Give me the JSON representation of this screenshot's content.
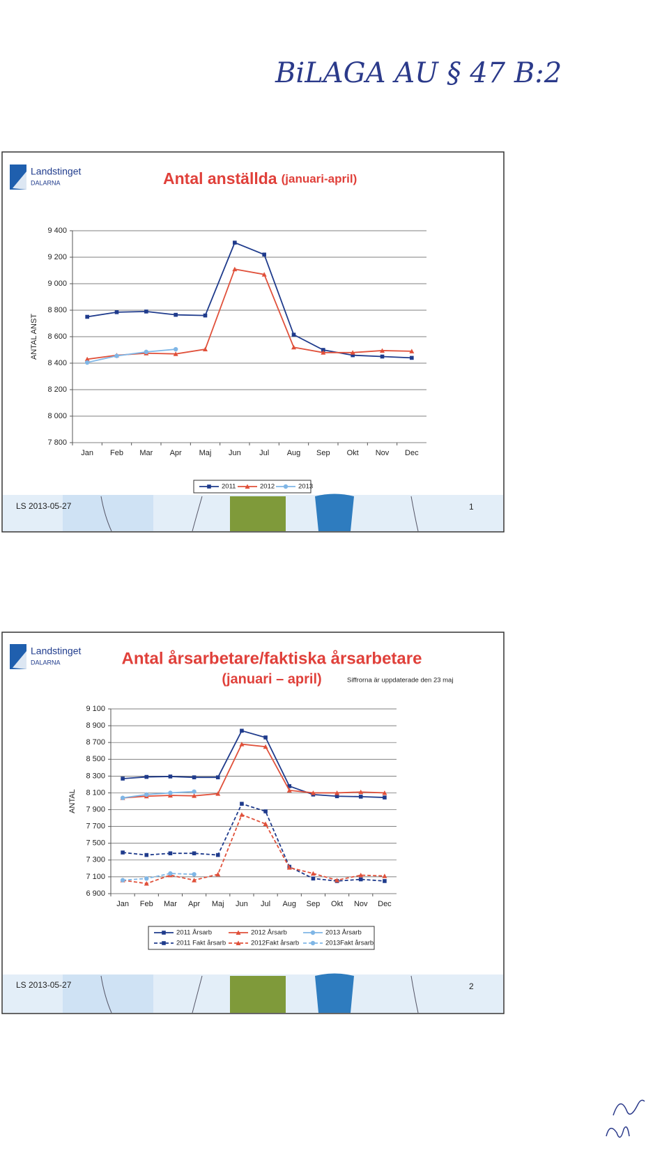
{
  "annotation": "BiLAGA AU § 47 B:2",
  "slides": [
    {
      "brand": "Landstinget",
      "region": "DALARNA",
      "title": "Antal anställda",
      "subtitle": "(januari-april)",
      "footer": "LS 2013-05-27",
      "page": "1"
    },
    {
      "brand": "Landstinget",
      "region": "DALARNA",
      "title": "Antal årsarbetare/faktiska årsarbetare",
      "subtitle": "(januari – april)",
      "note": "Siffrorna är uppdaterade den 23 maj",
      "footer": "LS 2013-05-27",
      "page": "2"
    }
  ],
  "chart_data": [
    {
      "type": "line",
      "y_label": "ANTAL ANST",
      "grid": true,
      "categories": [
        "Jan",
        "Feb",
        "Mar",
        "Apr",
        "Maj",
        "Jun",
        "Jul",
        "Aug",
        "Sep",
        "Okt",
        "Nov",
        "Dec"
      ],
      "ylim": [
        7800,
        9400
      ],
      "yticks": [
        {
          "value": 7800,
          "label": "7 800"
        },
        {
          "value": 8000,
          "label": "8 000"
        },
        {
          "value": 8200,
          "label": "8 200"
        },
        {
          "value": 8400,
          "label": "8 400"
        },
        {
          "value": 8600,
          "label": "8 600"
        },
        {
          "value": 8800,
          "label": "8 800"
        },
        {
          "value": 9000,
          "label": "9 000"
        },
        {
          "value": 9200,
          "label": "9 200"
        },
        {
          "value": 9400,
          "label": "9 400"
        }
      ],
      "series": [
        {
          "name": "2011",
          "color": "#1f3b8c",
          "marker": "square",
          "dashed": false,
          "values": [
            8750,
            8785,
            8790,
            8765,
            8760,
            9310,
            9220,
            8615,
            8500,
            8460,
            8450,
            8440
          ]
        },
        {
          "name": "2012",
          "color": "#e0503a",
          "marker": "triangle",
          "dashed": false,
          "values": [
            8430,
            8460,
            8475,
            8470,
            8505,
            9110,
            9070,
            8520,
            8480,
            8480,
            8495,
            8490
          ]
        },
        {
          "name": "2013",
          "color": "#7fb6e6",
          "marker": "circle",
          "dashed": false,
          "values": [
            8405,
            8455,
            8485,
            8505,
            null,
            null,
            null,
            null,
            null,
            null,
            null,
            null
          ]
        }
      ]
    },
    {
      "type": "line",
      "y_label": "ANTAL",
      "grid": true,
      "categories": [
        "Jan",
        "Feb",
        "Mar",
        "Apr",
        "Maj",
        "Jun",
        "Jul",
        "Aug",
        "Sep",
        "Okt",
        "Nov",
        "Dec"
      ],
      "ylim": [
        6900,
        9100
      ],
      "yticks": [
        {
          "value": 6900,
          "label": "6 900"
        },
        {
          "value": 7100,
          "label": "7 100"
        },
        {
          "value": 7300,
          "label": "7 300"
        },
        {
          "value": 7500,
          "label": "7 500"
        },
        {
          "value": 7700,
          "label": "7 700"
        },
        {
          "value": 7900,
          "label": "7 900"
        },
        {
          "value": 8100,
          "label": "8 100"
        },
        {
          "value": 8300,
          "label": "8 300"
        },
        {
          "value": 8500,
          "label": "8 500"
        },
        {
          "value": 8700,
          "label": "8 700"
        },
        {
          "value": 8900,
          "label": "8 900"
        },
        {
          "value": 9100,
          "label": "9 100"
        }
      ],
      "series": [
        {
          "name": "2011 Årsarb",
          "color": "#1f3b8c",
          "marker": "square",
          "dashed": false,
          "values": [
            8270,
            8290,
            8295,
            8285,
            8285,
            8840,
            8760,
            8180,
            8080,
            8060,
            8055,
            8045
          ]
        },
        {
          "name": "2012 Årsarb",
          "color": "#e0503a",
          "marker": "triangle",
          "dashed": false,
          "values": [
            8040,
            8060,
            8070,
            8065,
            8090,
            8680,
            8650,
            8130,
            8100,
            8100,
            8110,
            8100
          ]
        },
        {
          "name": "2013 Årsarb",
          "color": "#7fb6e6",
          "marker": "circle",
          "dashed": false,
          "values": [
            8040,
            8080,
            8100,
            8115,
            null,
            null,
            null,
            null,
            null,
            null,
            null,
            null
          ]
        },
        {
          "name": "2011 Fakt årsarb",
          "color": "#1f3b8c",
          "marker": "square",
          "dashed": true,
          "values": [
            7390,
            7360,
            7380,
            7380,
            7360,
            7970,
            7880,
            7220,
            7080,
            7050,
            7070,
            7050
          ]
        },
        {
          "name": "2012Fakt årsarb",
          "color": "#e0503a",
          "marker": "triangle",
          "dashed": true,
          "values": [
            7060,
            7020,
            7120,
            7060,
            7130,
            7840,
            7730,
            7210,
            7140,
            7060,
            7120,
            7110
          ]
        },
        {
          "name": "2013Fakt årsarb",
          "color": "#7fb6e6",
          "marker": "circle",
          "dashed": true,
          "values": [
            7060,
            7080,
            7140,
            7130,
            null,
            null,
            null,
            null,
            null,
            null,
            null,
            null
          ]
        }
      ]
    }
  ]
}
